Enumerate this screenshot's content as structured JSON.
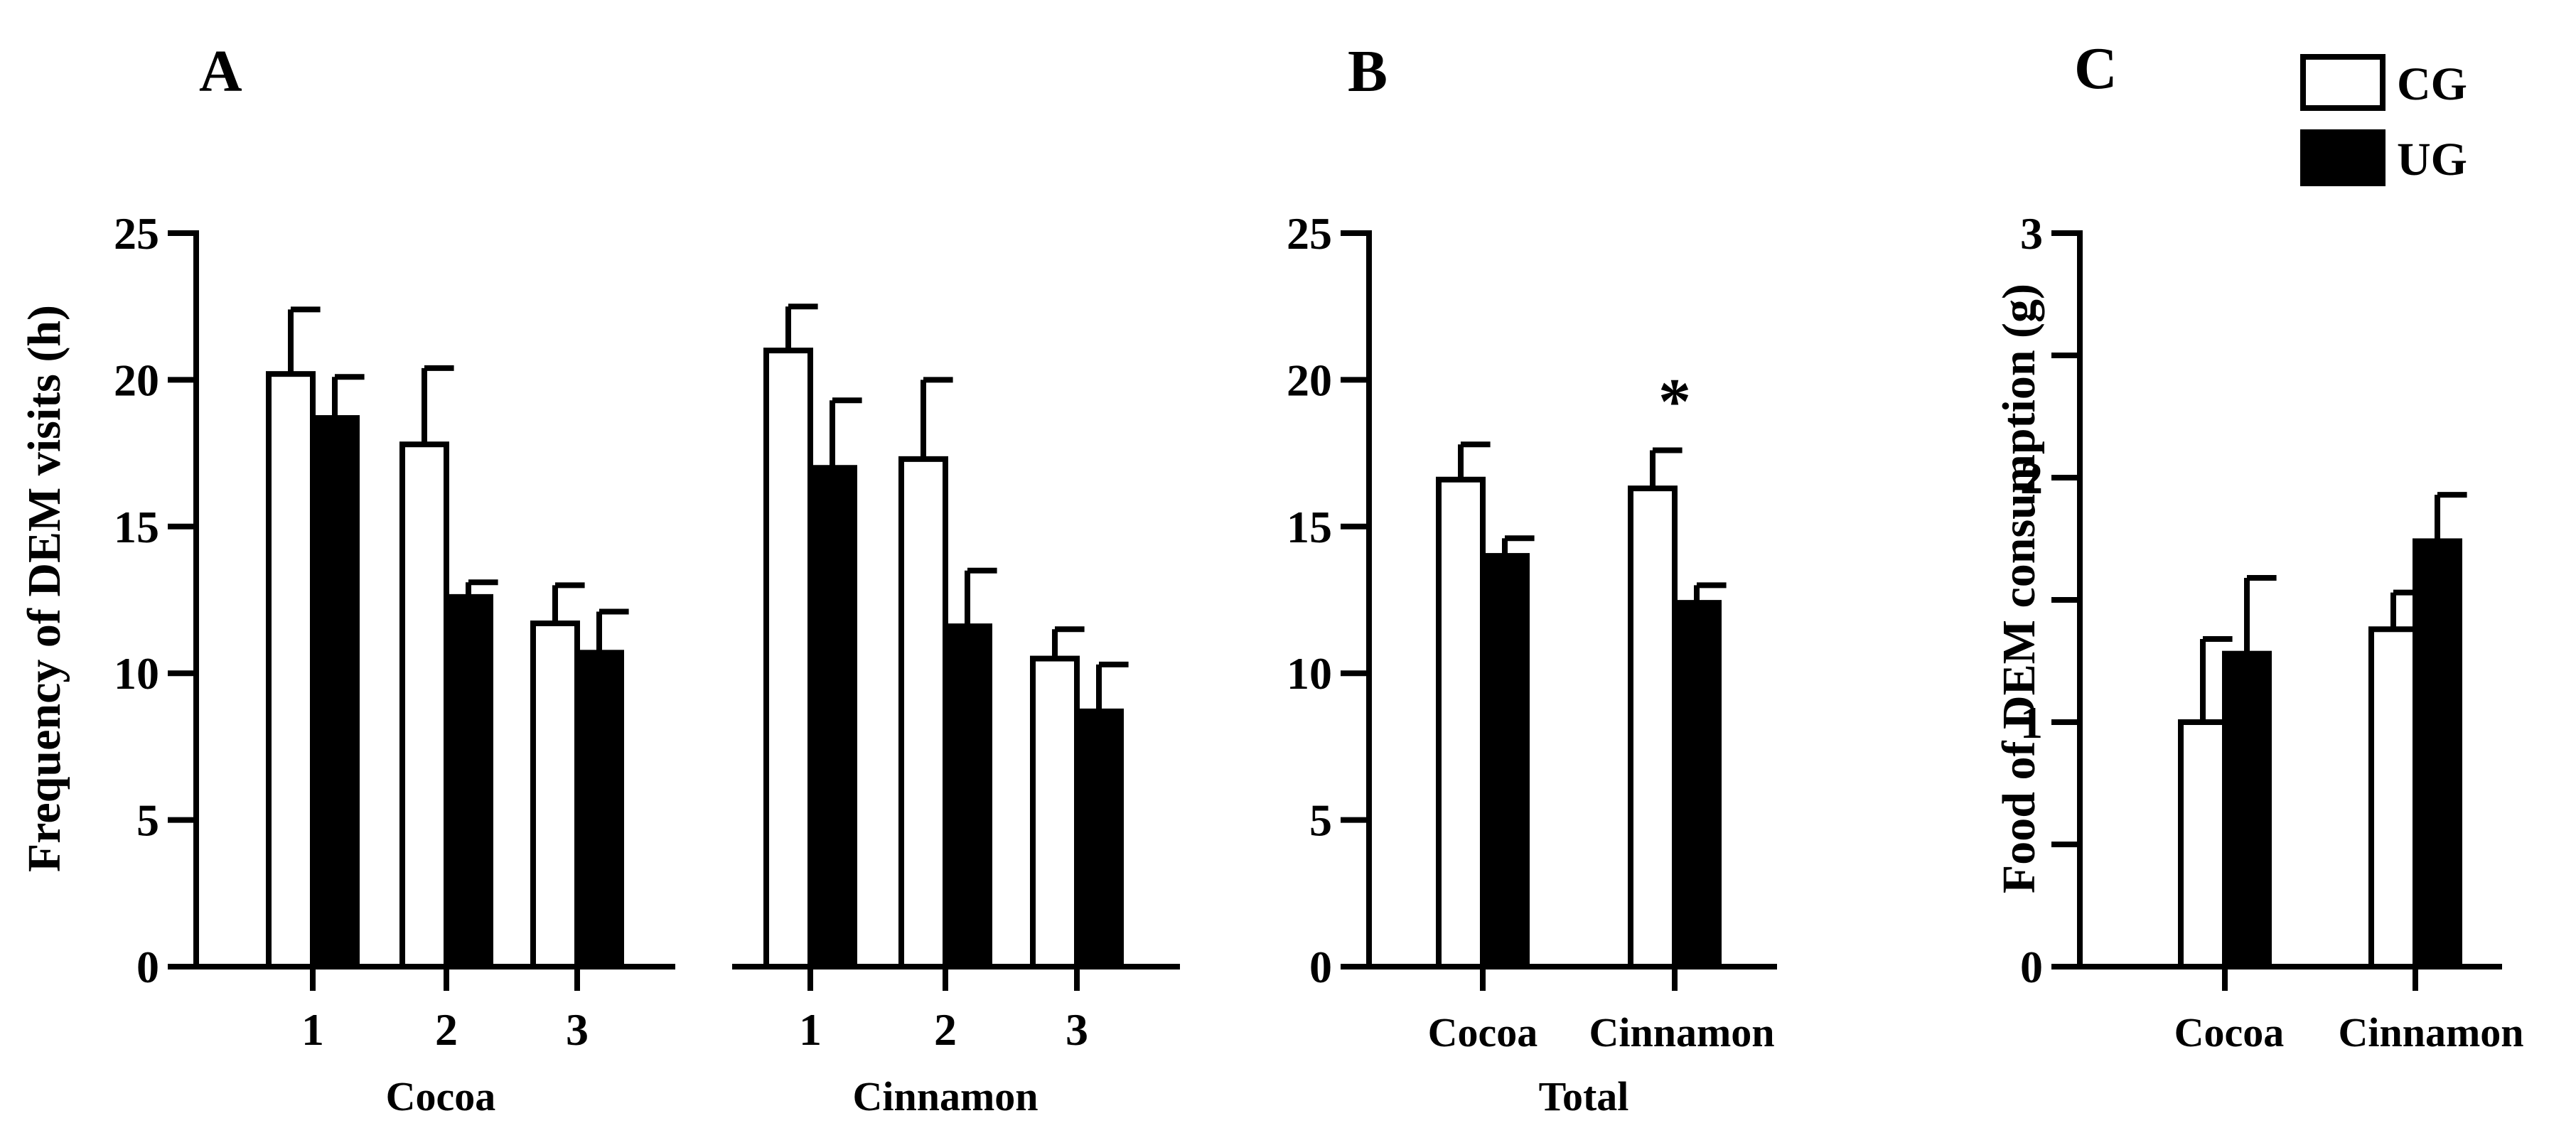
{
  "colors": {
    "cg": "#ffffff",
    "ug": "#000000"
  },
  "legend": [
    {
      "key": "cg",
      "label": "CG"
    },
    {
      "key": "ug",
      "label": "UG"
    }
  ],
  "chart_data": [
    {
      "panel": "A",
      "type": "bar",
      "ylabel": "Frequency of DEM visits (h)",
      "ylim": [
        0,
        25
      ],
      "yticks": [
        0,
        5,
        10,
        15,
        20,
        25
      ],
      "groups": [
        {
          "label": "Cocoa",
          "categories": [
            "1",
            "2",
            "3"
          ],
          "series": [
            {
              "name": "CG",
              "values": [
                20.2,
                17.8,
                11.7
              ],
              "errors": [
                2.2,
                2.6,
                1.3
              ]
            },
            {
              "name": "UG",
              "values": [
                18.7,
                12.6,
                10.7
              ],
              "errors": [
                1.4,
                0.5,
                1.4
              ]
            }
          ]
        },
        {
          "label": "Cinnamon",
          "categories": [
            "1",
            "2",
            "3"
          ],
          "series": [
            {
              "name": "CG",
              "values": [
                21.0,
                17.3,
                10.5
              ],
              "errors": [
                1.5,
                2.7,
                1.0
              ]
            },
            {
              "name": "UG",
              "values": [
                17.0,
                11.6,
                8.7
              ],
              "errors": [
                2.3,
                1.9,
                1.6
              ]
            }
          ]
        }
      ]
    },
    {
      "panel": "B",
      "type": "bar",
      "ylabel": "",
      "xlabel": "Total",
      "ylim": [
        0,
        25
      ],
      "yticks": [
        0,
        5,
        10,
        15,
        20,
        25
      ],
      "categories": [
        "Cocoa",
        "Cinnamon"
      ],
      "series": [
        {
          "name": "CG",
          "values": [
            16.6,
            16.3
          ],
          "errors": [
            1.2,
            1.3
          ]
        },
        {
          "name": "UG",
          "values": [
            14.0,
            12.4
          ],
          "errors": [
            0.6,
            0.6
          ]
        }
      ],
      "annotations": [
        {
          "text": "*",
          "category": "Cinnamon"
        }
      ]
    },
    {
      "panel": "C",
      "type": "bar",
      "ylabel": "Food of DEM consumption (g)",
      "ylim": [
        0,
        3
      ],
      "yticks": [
        0,
        1,
        2,
        3
      ],
      "minor_yticks": [
        0.5,
        1.5,
        2.5
      ],
      "categories": [
        "Cocoa",
        "Cinnamon"
      ],
      "series": [
        {
          "name": "CG",
          "values": [
            1.0,
            1.38
          ],
          "errors": [
            0.34,
            0.15
          ]
        },
        {
          "name": "UG",
          "values": [
            1.28,
            1.74
          ],
          "errors": [
            0.31,
            0.19
          ]
        }
      ]
    }
  ]
}
